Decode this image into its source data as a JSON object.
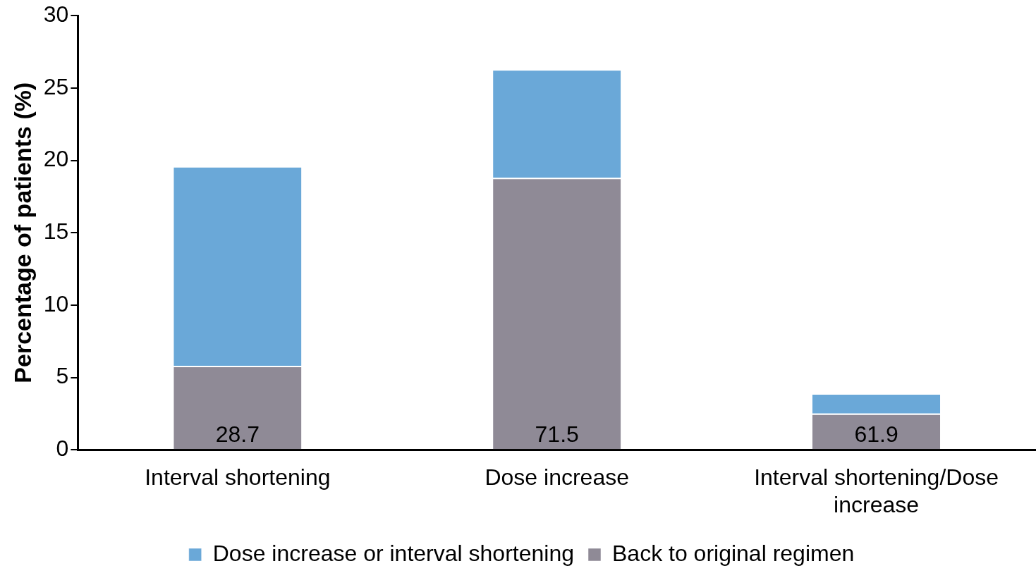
{
  "chart_data": {
    "type": "bar",
    "stacked": true,
    "ylabel": "Percentage of patients (%)",
    "categories": [
      "Interval shortening",
      "Dose increase",
      "Interval shortening/Dose increase"
    ],
    "series": [
      {
        "name": "Back to original regimen",
        "color": "#8f8a96",
        "values": [
          5.8,
          18.8,
          2.5
        ]
      },
      {
        "name": "Dose increase or interval shortening",
        "color": "#6aa8d8",
        "values": [
          13.8,
          7.5,
          1.4
        ]
      }
    ],
    "annotations": [
      {
        "text": "28.7",
        "x": "Interval shortening",
        "y": 0
      },
      {
        "text": "71.5",
        "x": "Dose increase",
        "y": 0
      },
      {
        "text": "61.9",
        "x": "Interval shortening/Dose increase",
        "y": 0
      }
    ],
    "ylim": [
      0,
      30
    ],
    "yticks": [
      0,
      5,
      10,
      15,
      20,
      25,
      30
    ],
    "grid": false,
    "legend": "bottom"
  }
}
